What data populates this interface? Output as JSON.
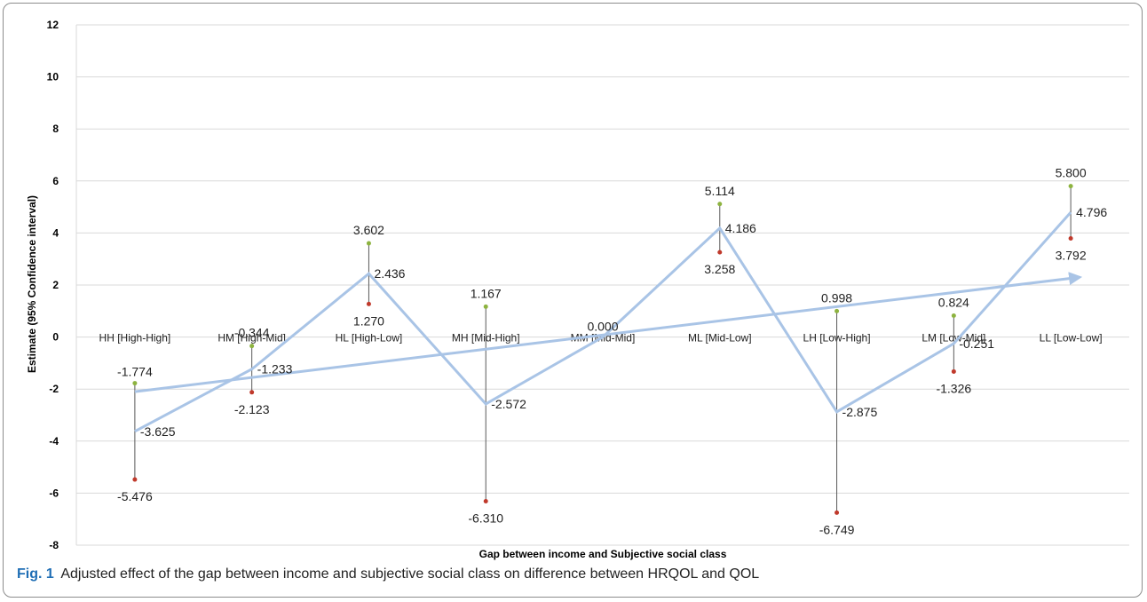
{
  "caption": {
    "figure_label": "Fig. 1",
    "text": "Adjusted effect of the gap between income and subjective social class on difference between HRQOL and QOL"
  },
  "chart_data": {
    "type": "line",
    "xlabel": "Gap between income and Subjective social class",
    "ylabel": "Estimate (95% Confidence interval)",
    "ylim": [
      -8,
      12
    ],
    "yticks": [
      "12",
      "10",
      "8",
      "6",
      "4",
      "2",
      "0",
      "-2",
      "-4",
      "-6",
      "-8"
    ],
    "yticks_values": [
      12,
      10,
      8,
      6,
      4,
      2,
      0,
      -2,
      -4,
      -6,
      -8
    ],
    "grid": true,
    "categories": [
      "HH [High-High]",
      "HM [High-Mid]",
      "HL [High-Low]",
      "MH  [Mid-High]",
      "MM  [Mid-Mid]",
      "ML [Mid-Low]",
      "LH [Low-High]",
      "LM  [Low-Mid]",
      "LL [Low-Low]"
    ],
    "estimate": [
      -3.625,
      -1.233,
      2.436,
      -2.572,
      0.0,
      4.186,
      -2.875,
      -0.251,
      4.796
    ],
    "upper": [
      -1.774,
      -0.344,
      3.602,
      1.167,
      null,
      5.114,
      0.998,
      0.824,
      5.8
    ],
    "lower": [
      -5.476,
      -2.123,
      1.27,
      -6.31,
      null,
      3.258,
      -6.749,
      -1.326,
      3.792
    ],
    "estimate_labels": [
      "-3.625",
      "-1.233",
      "2.436",
      "-2.572",
      "0.000",
      "4.186",
      "-2.875",
      "-0.251",
      "4.796"
    ],
    "upper_labels": [
      "-1.774",
      "-0.344",
      "3.602",
      "1.167",
      "",
      "5.114",
      "0.998",
      "0.824",
      "5.800"
    ],
    "lower_labels": [
      "-5.476",
      "-2.123",
      "1.270",
      "-6.310",
      "",
      "3.258",
      "-6.749",
      "-1.326",
      "3.792"
    ],
    "trend": {
      "start": -2.1,
      "end": 2.3
    },
    "colors": {
      "line": "#a9c4e6",
      "whisker": "#595959",
      "upper_marker": "#8db33f",
      "lower_marker": "#c0392b",
      "grid": "#d9d9d9",
      "caption_label": "#1f6eb5"
    }
  }
}
